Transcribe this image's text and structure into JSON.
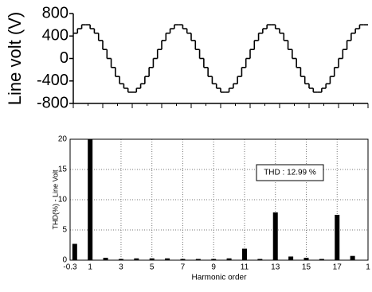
{
  "chart_data": [
    {
      "type": "step-line",
      "ylabel": "Line volt (V)",
      "ylim": [
        -800,
        800
      ],
      "yticks": [
        800,
        400,
        0,
        -400,
        -800
      ],
      "series": [
        {
          "color": "#000000",
          "values": [
            450,
            530,
            600,
            600,
            530,
            450,
            320,
            160,
            0,
            -160,
            -320,
            -450,
            -530,
            -600,
            -600,
            -530,
            -450,
            -320,
            -160,
            0,
            160,
            320,
            450,
            530,
            600,
            600,
            530,
            450,
            320,
            160,
            0,
            -160,
            -320,
            -450,
            -530,
            -600,
            -600,
            -530,
            -450,
            -320,
            -160,
            0,
            160,
            320,
            450,
            530,
            600,
            600,
            530,
            450,
            320,
            160,
            0,
            -160,
            -320,
            -450,
            -530,
            -600,
            -600,
            -530,
            -450,
            -320,
            -160,
            0,
            160,
            320,
            450,
            530,
            600,
            600
          ]
        }
      ]
    },
    {
      "type": "bar",
      "xlabel": "Harmonic order",
      "ylabel": "THD(%) - Line Volt",
      "annotation": "THD : 12.99 %",
      "x": [
        0,
        1,
        2,
        3,
        4,
        5,
        6,
        7,
        8,
        9,
        10,
        11,
        12,
        13,
        14,
        15,
        16,
        17,
        18
      ],
      "values": [
        2.7,
        20,
        0.4,
        0.2,
        0.3,
        0.3,
        0.3,
        0.2,
        0.2,
        0.2,
        0.3,
        1.9,
        0.2,
        7.9,
        0.6,
        0.4,
        0.2,
        7.5,
        0.7
      ],
      "color": "#000000",
      "xlim": [
        -0.3,
        19
      ],
      "xticks": [
        -0.3,
        1,
        3,
        5,
        7,
        9,
        11,
        13,
        15,
        17,
        {
          "value": 19,
          "label": "1"
        }
      ],
      "ylim": [
        0,
        20
      ],
      "yticks": [
        0,
        5,
        10,
        15,
        20
      ],
      "grid": true
    }
  ]
}
